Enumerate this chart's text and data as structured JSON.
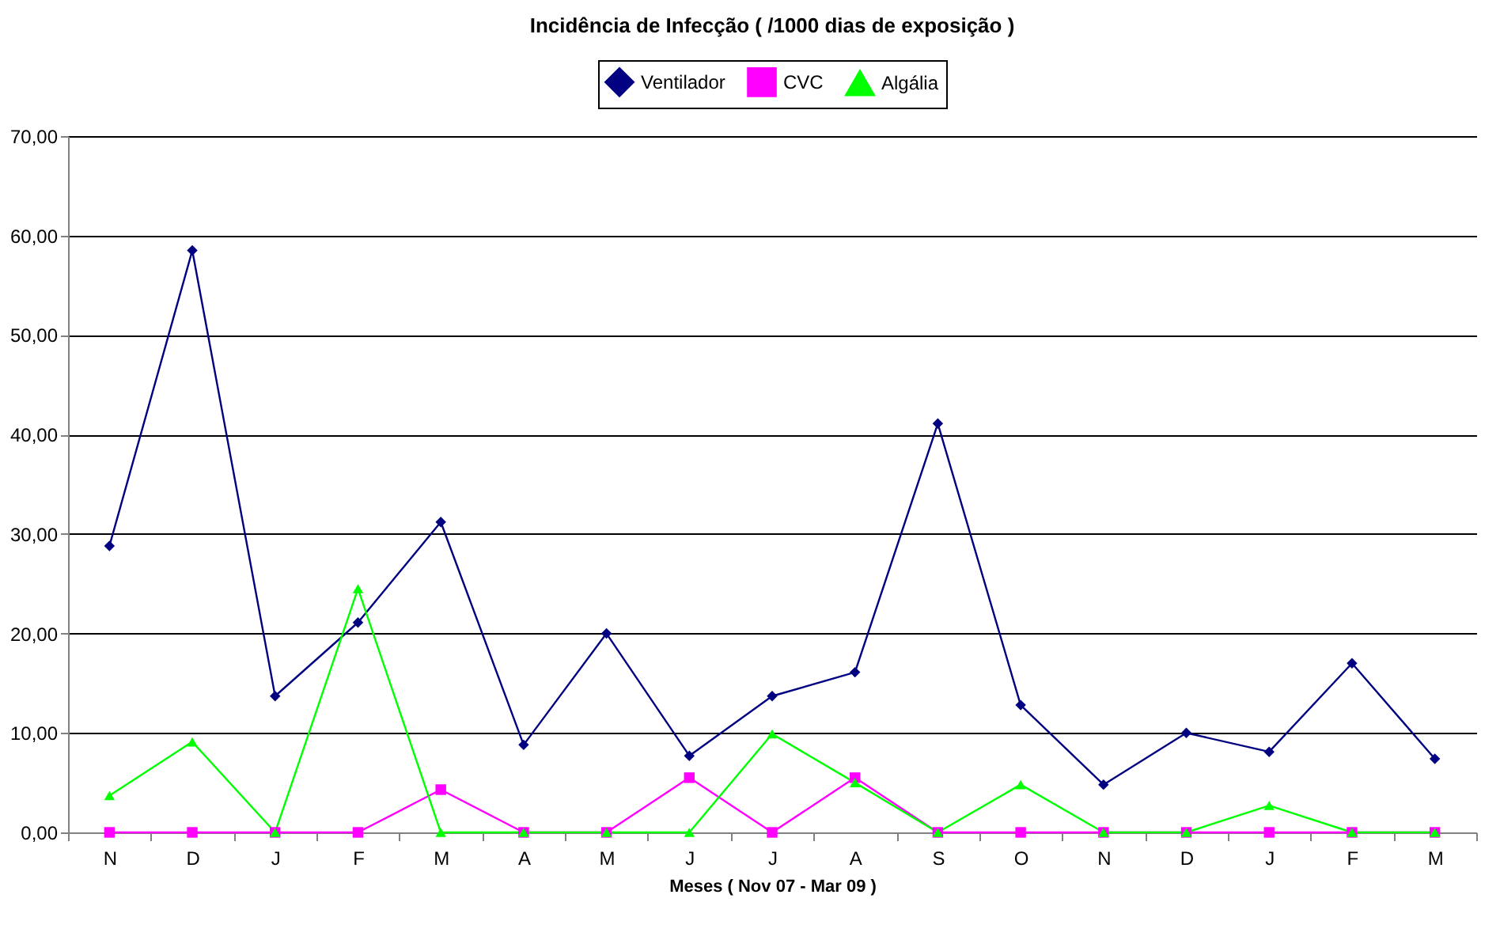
{
  "chart_data": {
    "type": "line",
    "title": "Incidência de Infecção ( /1000 dias de exposição )",
    "xlabel": "Meses ( Nov 07 - Mar 09 )",
    "categories": [
      "N",
      "D",
      "J",
      "F",
      "M",
      "A",
      "M",
      "J",
      "J",
      "A",
      "S",
      "O",
      "N",
      "D",
      "J",
      "F",
      "M"
    ],
    "series": [
      {
        "name": "Ventilador",
        "color": "#000080",
        "marker": "diamond",
        "values": [
          28.8,
          58.5,
          13.7,
          21.1,
          31.2,
          8.8,
          20.0,
          7.7,
          13.7,
          16.1,
          41.1,
          12.8,
          4.8,
          10.0,
          8.1,
          17.0,
          7.4
        ]
      },
      {
        "name": "CVC",
        "color": "#ff00ff",
        "marker": "square",
        "values": [
          0,
          0,
          0,
          0,
          4.3,
          0,
          0,
          5.5,
          0,
          5.5,
          0,
          0,
          0,
          0,
          0,
          0,
          0
        ]
      },
      {
        "name": "Algália",
        "color": "#00ff00",
        "marker": "triangle",
        "values": [
          3.7,
          9.1,
          0,
          24.5,
          0,
          0,
          0,
          0,
          9.9,
          5.0,
          0,
          4.8,
          0,
          0,
          2.7,
          0,
          0
        ]
      }
    ],
    "ylim": [
      0,
      70
    ],
    "yticks": [
      {
        "value": 0,
        "label": "0,00"
      },
      {
        "value": 10,
        "label": "10,00"
      },
      {
        "value": 20,
        "label": "20,00"
      },
      {
        "value": 30,
        "label": "30,00"
      },
      {
        "value": 40,
        "label": "40,00"
      },
      {
        "value": 50,
        "label": "50,00"
      },
      {
        "value": 60,
        "label": "60,00"
      },
      {
        "value": 70,
        "label": "70,00"
      }
    ],
    "grid": "y",
    "legend": "top",
    "line_style": "solid"
  }
}
